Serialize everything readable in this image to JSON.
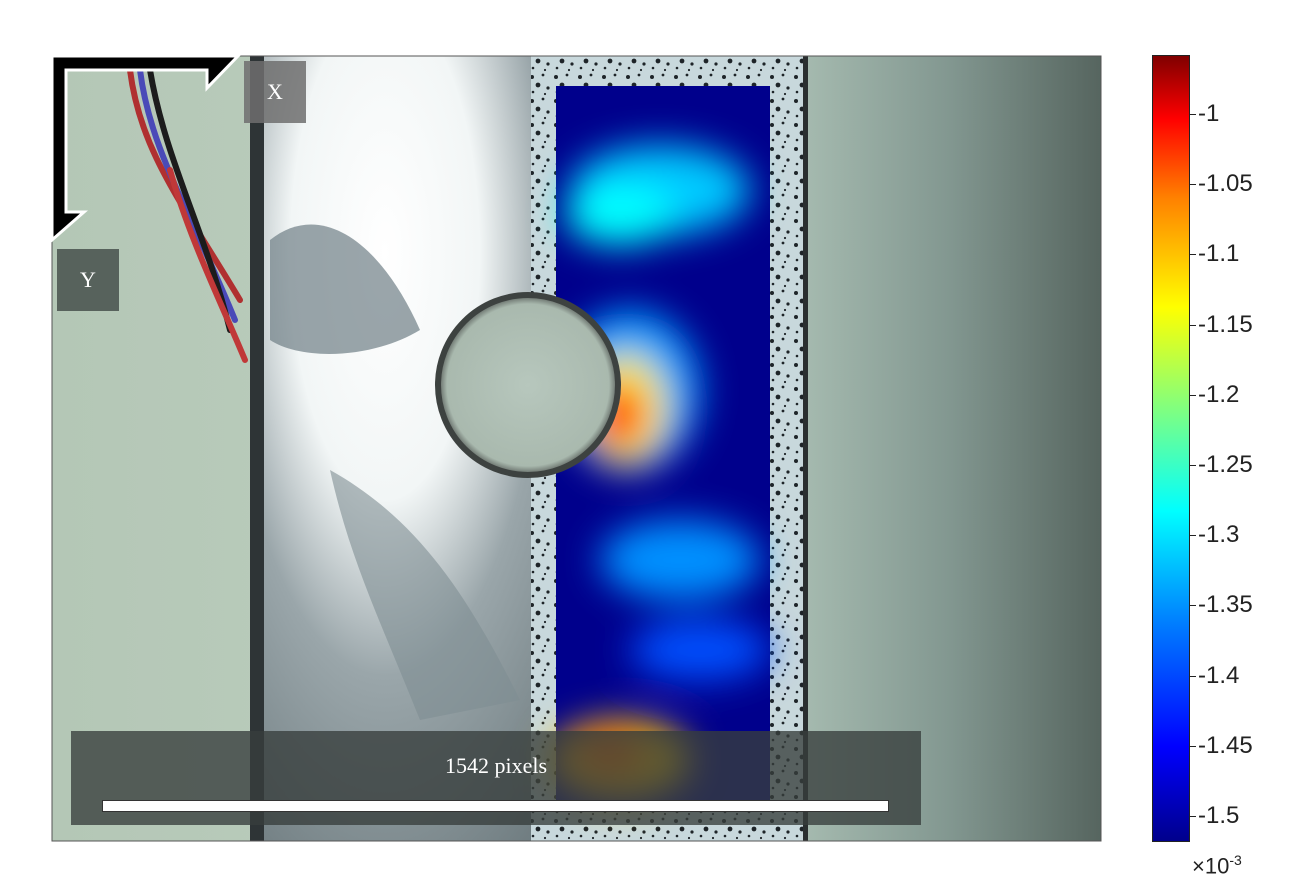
{
  "labels": {
    "x_axis": "X",
    "y_axis": "Y",
    "scalebar": "1542 pixels"
  },
  "colorbar": {
    "ticks": [
      "-1",
      "-1.05",
      "-1.1",
      "-1.15",
      "-1.2",
      "-1.25",
      "-1.3",
      "-1.35",
      "-1.4",
      "-1.45",
      "-1.5"
    ],
    "multiplier_base": "×10",
    "multiplier_exp": "-3",
    "colormap": "jet"
  },
  "colors": {
    "overlay_background": "#00008c",
    "hot_spot": "#c00000"
  }
}
